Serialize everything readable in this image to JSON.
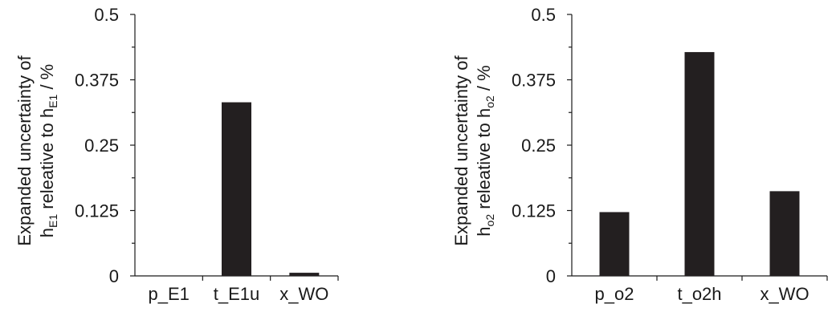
{
  "chart_data": [
    {
      "type": "bar",
      "categories": [
        "p_E1",
        "t_E1u",
        "x_WO"
      ],
      "values": [
        0,
        0.332,
        0.006
      ],
      "ylim": [
        0,
        0.5
      ],
      "yticks": [
        "0",
        "0.125",
        "0.25",
        "0.375",
        "0.5"
      ],
      "ylabel": {
        "line1": "Expanded uncertainty of",
        "h": "h",
        "h_sub": "E1",
        "mid": " releative to  ",
        "h2": "h",
        "h2_sub": "E1",
        "unit": " / %"
      },
      "color": "#231f20"
    },
    {
      "type": "bar",
      "categories": [
        "p_o2",
        "t_o2h",
        "x_WO"
      ],
      "values": [
        0.122,
        0.428,
        0.162
      ],
      "ylim": [
        0,
        0.5
      ],
      "yticks": [
        "0",
        "0.125",
        "0.25",
        "0.375",
        "0.5"
      ],
      "ylabel": {
        "line1": "Expanded uncertainty of",
        "h": "h",
        "h_sub": "o2",
        "mid": " releative to  ",
        "h2": "h",
        "h2_sub": "o2",
        "unit": " / %"
      },
      "color": "#231f20"
    }
  ]
}
